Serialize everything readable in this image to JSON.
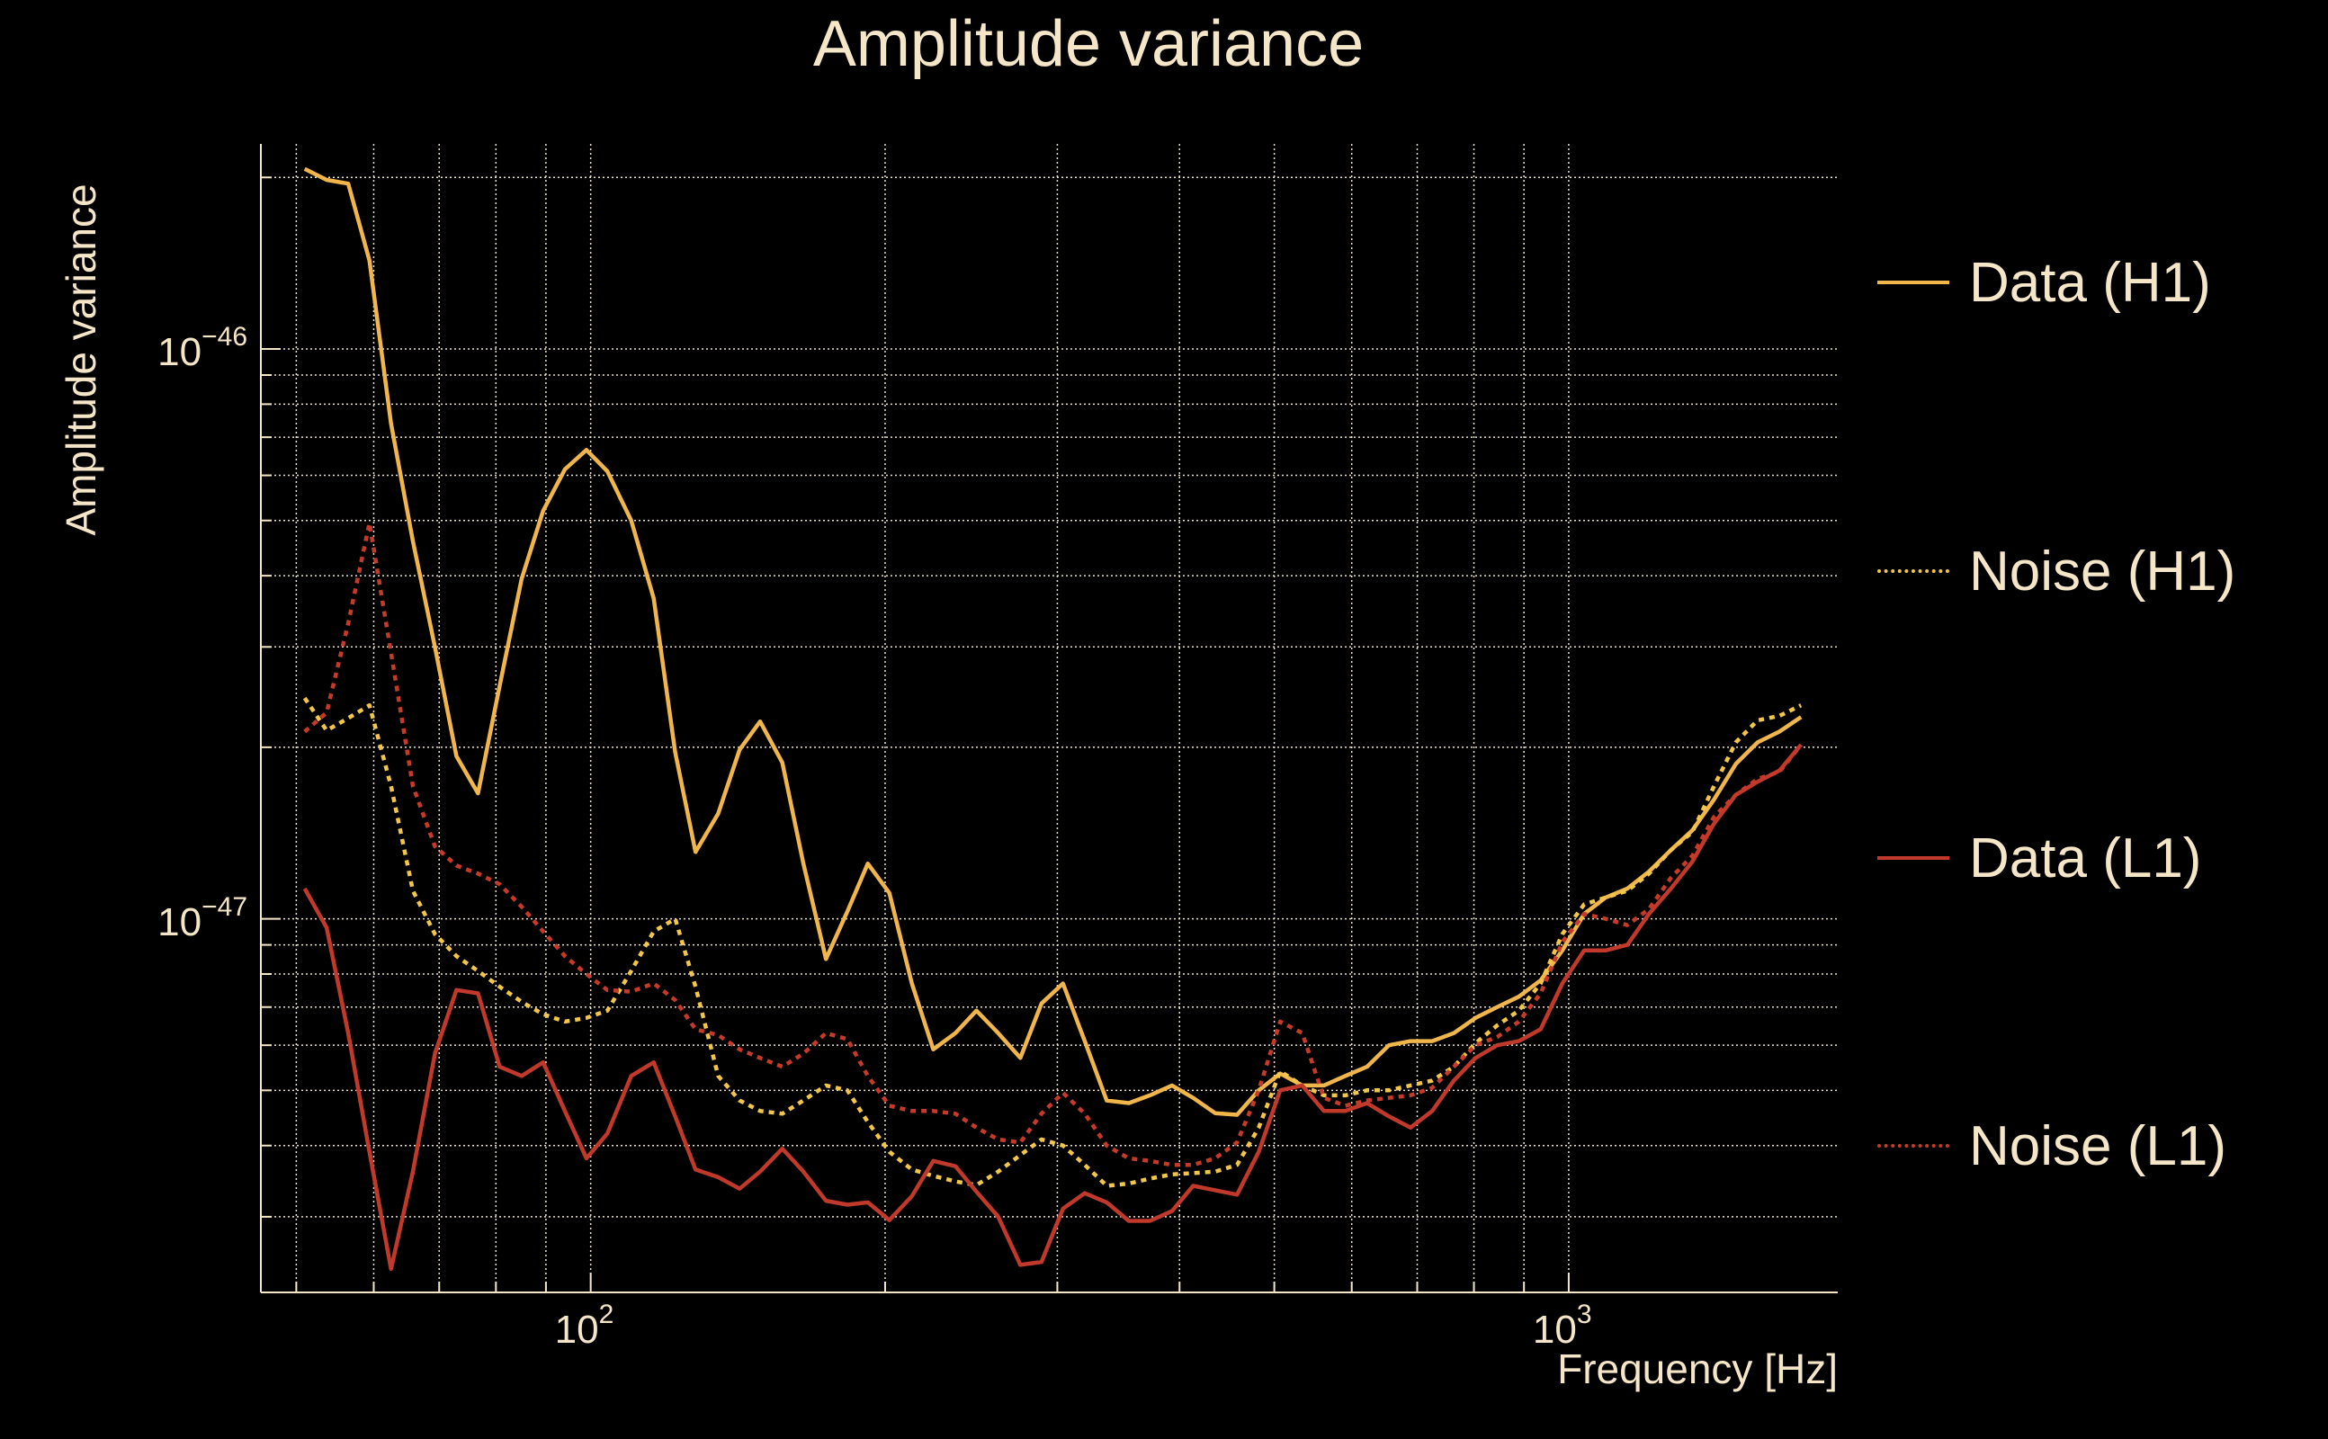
{
  "chart_data": {
    "type": "line",
    "title": "Amplitude variance",
    "xlabel": "Frequency [Hz]",
    "ylabel": "Amplitude variance",
    "xscale": "log",
    "yscale": "log",
    "xlim": [
      46,
      1884
    ],
    "ylim_units_1e-47": [
      0.221,
      22.9
    ],
    "value_multiplier": 1e-47,
    "grid": true,
    "legend_placement": "right-outside",
    "x_ticks": [
      {
        "value": 100,
        "base": "10",
        "exp": "2"
      },
      {
        "value": 1000,
        "base": "10",
        "exp": "3"
      }
    ],
    "y_ticks": [
      {
        "value": 10,
        "base": "10",
        "exp": "−46"
      },
      {
        "value": 1,
        "base": "10",
        "exp": "−47"
      }
    ],
    "x": [
      51,
      53.7,
      56.5,
      59.4,
      62.5,
      65.8,
      69.3,
      72.9,
      76.7,
      80.7,
      85,
      89.4,
      94.1,
      99,
      104,
      110,
      116,
      122,
      128,
      135,
      142,
      149,
      157,
      165,
      174,
      183,
      192,
      202,
      213,
      224,
      236,
      248,
      261,
      275,
      289,
      304,
      320,
      337,
      355,
      373,
      393,
      413,
      435,
      458,
      482,
      507,
      534,
      562,
      591,
      622,
      655,
      689,
      725,
      763,
      803,
      845,
      889,
      936,
      985,
      1037,
      1091,
      1148,
      1208,
      1272,
      1338,
      1408,
      1482,
      1560,
      1642,
      1728
    ],
    "series": [
      {
        "name": "Data (H1)",
        "color": "#f0b64c",
        "style": "solid",
        "values": [
          20.7,
          19.8,
          19.5,
          14.3,
          7.4,
          4.6,
          3.0,
          1.93,
          1.66,
          2.56,
          3.95,
          5.2,
          6.15,
          6.65,
          6.1,
          5.0,
          3.65,
          1.96,
          1.31,
          1.53,
          1.98,
          2.22,
          1.88,
          1.25,
          0.85,
          1.03,
          1.25,
          1.11,
          0.77,
          0.59,
          0.63,
          0.69,
          0.63,
          0.57,
          0.71,
          0.77,
          0.61,
          0.48,
          0.475,
          0.49,
          0.51,
          0.485,
          0.456,
          0.453,
          0.5,
          0.535,
          0.51,
          0.51,
          0.53,
          0.55,
          0.6,
          0.61,
          0.61,
          0.63,
          0.67,
          0.7,
          0.73,
          0.78,
          0.88,
          1.02,
          1.09,
          1.13,
          1.21,
          1.32,
          1.43,
          1.62,
          1.87,
          2.04,
          2.13,
          2.26
        ]
      },
      {
        "name": "Noise (H1)",
        "color": "#f2c64a",
        "style": "dotted",
        "values": [
          2.44,
          2.14,
          2.25,
          2.37,
          1.71,
          1.12,
          0.94,
          0.86,
          0.81,
          0.76,
          0.715,
          0.68,
          0.66,
          0.67,
          0.69,
          0.81,
          0.95,
          1.0,
          0.76,
          0.53,
          0.48,
          0.46,
          0.455,
          0.48,
          0.51,
          0.5,
          0.44,
          0.39,
          0.363,
          0.354,
          0.346,
          0.341,
          0.36,
          0.385,
          0.41,
          0.4,
          0.37,
          0.34,
          0.343,
          0.35,
          0.356,
          0.358,
          0.36,
          0.37,
          0.43,
          0.54,
          0.51,
          0.49,
          0.49,
          0.5,
          0.5,
          0.51,
          0.52,
          0.55,
          0.605,
          0.65,
          0.69,
          0.77,
          0.94,
          1.06,
          1.09,
          1.12,
          1.2,
          1.32,
          1.42,
          1.71,
          2.04,
          2.23,
          2.27,
          2.37
        ]
      },
      {
        "name": "Data (L1)",
        "color": "#c0392b",
        "style": "solid",
        "values": [
          1.13,
          0.965,
          0.63,
          0.39,
          0.243,
          0.36,
          0.58,
          0.75,
          0.74,
          0.55,
          0.53,
          0.56,
          0.46,
          0.38,
          0.42,
          0.53,
          0.56,
          0.45,
          0.363,
          0.352,
          0.336,
          0.36,
          0.395,
          0.36,
          0.32,
          0.315,
          0.318,
          0.296,
          0.326,
          0.376,
          0.368,
          0.332,
          0.3,
          0.247,
          0.25,
          0.31,
          0.33,
          0.318,
          0.295,
          0.295,
          0.307,
          0.34,
          0.334,
          0.328,
          0.39,
          0.5,
          0.51,
          0.46,
          0.46,
          0.475,
          0.45,
          0.43,
          0.46,
          0.52,
          0.57,
          0.6,
          0.61,
          0.64,
          0.77,
          0.88,
          0.88,
          0.9,
          1.02,
          1.13,
          1.26,
          1.47,
          1.65,
          1.74,
          1.82,
          2.02
        ]
      },
      {
        "name": "Noise (L1)",
        "color": "#c63a2a",
        "style": "dotted",
        "values": [
          2.13,
          2.3,
          3.3,
          4.95,
          2.93,
          1.71,
          1.34,
          1.24,
          1.2,
          1.15,
          1.05,
          0.95,
          0.86,
          0.8,
          0.75,
          0.745,
          0.77,
          0.72,
          0.64,
          0.625,
          0.59,
          0.57,
          0.55,
          0.58,
          0.63,
          0.615,
          0.53,
          0.47,
          0.46,
          0.46,
          0.455,
          0.43,
          0.41,
          0.405,
          0.455,
          0.495,
          0.455,
          0.4,
          0.38,
          0.376,
          0.37,
          0.37,
          0.38,
          0.405,
          0.5,
          0.66,
          0.63,
          0.485,
          0.47,
          0.48,
          0.485,
          0.49,
          0.505,
          0.55,
          0.6,
          0.62,
          0.66,
          0.74,
          0.91,
          1.02,
          1.0,
          0.975,
          1.04,
          1.18,
          1.29,
          1.51,
          1.65,
          1.76,
          1.81,
          2.02
        ]
      }
    ]
  }
}
